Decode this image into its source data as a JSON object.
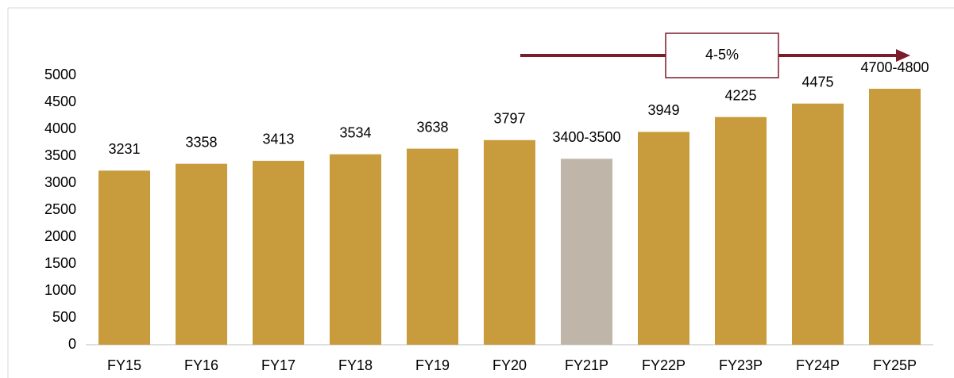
{
  "chart_data": {
    "type": "bar",
    "categories": [
      "FY15",
      "FY16",
      "FY17",
      "FY18",
      "FY19",
      "FY20",
      "FY21P",
      "FY22P",
      "FY23P",
      "FY24P",
      "FY25P"
    ],
    "values": [
      3231,
      3358,
      3413,
      3534,
      3638,
      3797,
      3450,
      3949,
      4225,
      4475,
      4750
    ],
    "value_labels": [
      "3231",
      "3358",
      "3413",
      "3534",
      "3638",
      "3797",
      "3400-3500",
      "3949",
      "4225",
      "4475",
      "4700-4800"
    ],
    "colors": [
      "#c89b3c",
      "#c89b3c",
      "#c89b3c",
      "#c89b3c",
      "#c89b3c",
      "#c89b3c",
      "#bfb5a8",
      "#c89b3c",
      "#c89b3c",
      "#c89b3c",
      "#c89b3c"
    ],
    "ylim": [
      0,
      5000
    ],
    "yticks": [
      0,
      500,
      1000,
      1500,
      2000,
      2500,
      3000,
      3500,
      4000,
      4500,
      5000
    ],
    "grid": false,
    "annotation": "4-5%"
  }
}
